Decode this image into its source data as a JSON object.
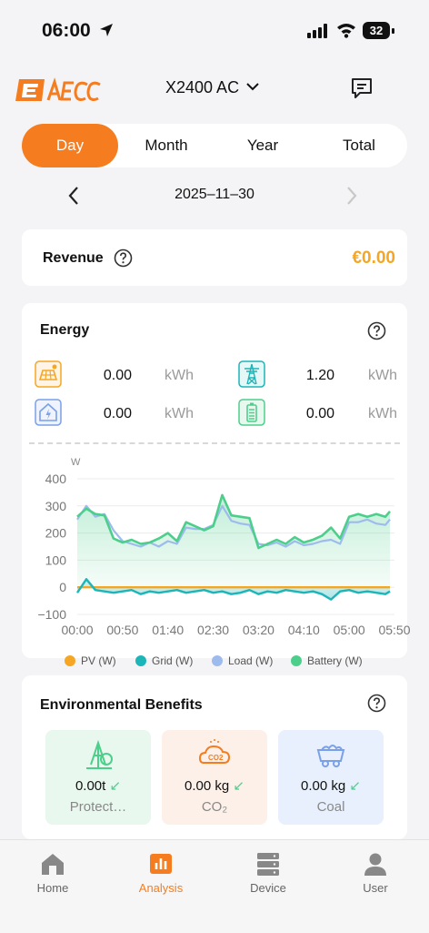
{
  "status_bar": {
    "time": "06:00",
    "battery": "32"
  },
  "header": {
    "logo_text": "AECC",
    "device_name": "X2400 AC"
  },
  "tabs": [
    "Day",
    "Month",
    "Year",
    "Total"
  ],
  "active_tab": "Day",
  "date": "2025–11–30",
  "revenue": {
    "label": "Revenue",
    "value": "€0.00"
  },
  "energy": {
    "title": "Energy",
    "stats": [
      {
        "icon": "solar-panel-icon",
        "value": "0.00",
        "unit": "kWh"
      },
      {
        "icon": "grid-tower-icon",
        "value": "1.20",
        "unit": "kWh"
      },
      {
        "icon": "home-power-icon",
        "value": "0.00",
        "unit": "kWh"
      },
      {
        "icon": "battery-icon",
        "value": "0.00",
        "unit": "kWh"
      }
    ]
  },
  "chart_data": {
    "type": "line",
    "ylabel": "W",
    "ylim": [
      -100,
      400
    ],
    "yticks": [
      "400",
      "300",
      "200",
      "100",
      "0",
      "−100"
    ],
    "xtick_labels": [
      "00:00",
      "00:50",
      "01:40",
      "02:30",
      "03:20",
      "04:10",
      "05:00",
      "05:50"
    ],
    "x_minutes": [
      0,
      10,
      20,
      30,
      40,
      50,
      60,
      70,
      80,
      90,
      100,
      110,
      120,
      130,
      140,
      150,
      160,
      170,
      180,
      190,
      200,
      210,
      220,
      230,
      240,
      250,
      260,
      270,
      280,
      290,
      300,
      310,
      320,
      330,
      340,
      345
    ],
    "series": [
      {
        "name": "PV (W)",
        "color": "#f5a623",
        "values": [
          0,
          0,
          0,
          0,
          0,
          0,
          0,
          0,
          0,
          0,
          0,
          0,
          0,
          0,
          0,
          0,
          0,
          0,
          0,
          0,
          0,
          0,
          0,
          0,
          0,
          0,
          0,
          0,
          0,
          0,
          0,
          0,
          0,
          0,
          0,
          0
        ]
      },
      {
        "name": "Grid (W)",
        "color": "#1cb5b8",
        "values": [
          -20,
          30,
          -10,
          -15,
          -20,
          -15,
          -10,
          -25,
          -15,
          -20,
          -15,
          -10,
          -20,
          -15,
          -10,
          -20,
          -15,
          -25,
          -20,
          -10,
          -25,
          -15,
          -20,
          -10,
          -15,
          -20,
          -15,
          -25,
          -45,
          -15,
          -10,
          -20,
          -15,
          -20,
          -25,
          -15
        ]
      },
      {
        "name": "Load (W)",
        "color": "#9ebbee",
        "values": [
          250,
          300,
          260,
          270,
          210,
          170,
          160,
          150,
          165,
          150,
          170,
          160,
          220,
          215,
          215,
          230,
          300,
          245,
          235,
          230,
          160,
          155,
          165,
          150,
          170,
          155,
          160,
          170,
          175,
          160,
          240,
          240,
          250,
          235,
          230,
          250
        ]
      },
      {
        "name": "Battery (W)",
        "color": "#4dcf8c",
        "values": [
          260,
          290,
          270,
          265,
          180,
          165,
          175,
          160,
          165,
          180,
          200,
          170,
          240,
          225,
          210,
          225,
          340,
          265,
          260,
          255,
          145,
          160,
          175,
          160,
          185,
          165,
          175,
          190,
          220,
          180,
          260,
          270,
          260,
          270,
          260,
          280
        ]
      }
    ],
    "legend_position": "bottom",
    "grid": true
  },
  "environment": {
    "title": "Environmental Benefits",
    "items": [
      {
        "icon": "tree-icon",
        "value": "0.00t",
        "label": "Protect…",
        "bg": "#e9f8ee"
      },
      {
        "icon": "co2-cloud-icon",
        "value": "0.00 kg",
        "label": "CO₂",
        "bg": "#fdf0e9"
      },
      {
        "icon": "coal-cart-icon",
        "value": "0.00 kg",
        "label": "Coal",
        "bg": "#e8f0fd"
      }
    ]
  },
  "nav": [
    {
      "label": "Home",
      "icon": "home-icon"
    },
    {
      "label": "Analysis",
      "icon": "analysis-icon"
    },
    {
      "label": "Device",
      "icon": "device-icon"
    },
    {
      "label": "User",
      "icon": "user-icon"
    }
  ],
  "active_nav": "Analysis",
  "colors": {
    "accent": "#f57d1f",
    "revenue": "#f5a623"
  }
}
